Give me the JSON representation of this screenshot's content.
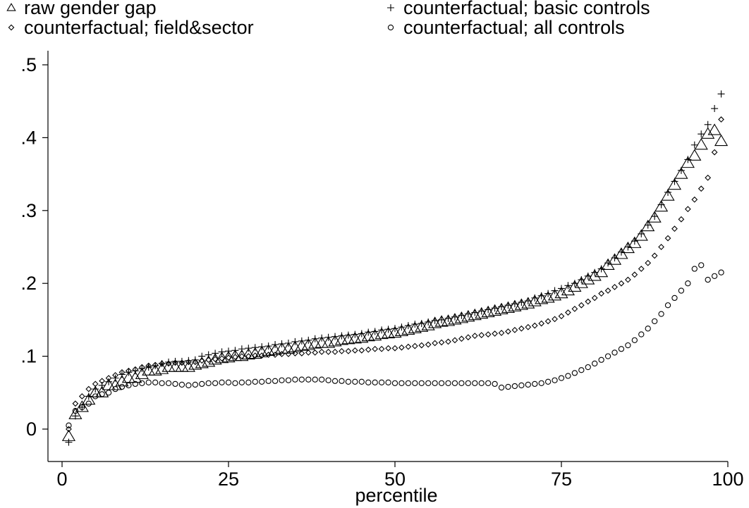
{
  "chart_data": {
    "type": "scatter",
    "xlabel": "percentile",
    "ylabel": "",
    "xlim": [
      0,
      100
    ],
    "ylim": [
      -0.04,
      0.52
    ],
    "xticks": [
      {
        "value": 0,
        "label": "0"
      },
      {
        "value": 25,
        "label": "25"
      },
      {
        "value": 50,
        "label": "50"
      },
      {
        "value": 75,
        "label": "75"
      },
      {
        "value": 100,
        "label": "100"
      }
    ],
    "yticks": [
      {
        "value": 0,
        "label": "0"
      },
      {
        "value": 0.1,
        "label": ".1"
      },
      {
        "value": 0.2,
        "label": ".2"
      },
      {
        "value": 0.3,
        "label": ".3"
      },
      {
        "value": 0.4,
        "label": ".4"
      },
      {
        "value": 0.5,
        "label": ".5"
      }
    ],
    "legend_position": "top",
    "series": [
      {
        "name": "raw gender gap",
        "marker": "triangle",
        "x": [
          1,
          2,
          3,
          4,
          5,
          6,
          7,
          8,
          9,
          10,
          11,
          12,
          13,
          14,
          15,
          16,
          17,
          18,
          19,
          20,
          21,
          22,
          23,
          24,
          25,
          26,
          27,
          28,
          29,
          30,
          31,
          32,
          33,
          34,
          35,
          36,
          37,
          38,
          39,
          40,
          41,
          42,
          43,
          44,
          45,
          46,
          47,
          48,
          49,
          50,
          51,
          52,
          53,
          54,
          55,
          56,
          57,
          58,
          59,
          60,
          61,
          62,
          63,
          64,
          65,
          66,
          67,
          68,
          69,
          70,
          71,
          72,
          73,
          74,
          75,
          76,
          77,
          78,
          79,
          80,
          81,
          82,
          83,
          84,
          85,
          86,
          87,
          88,
          89,
          90,
          91,
          92,
          93,
          94,
          95,
          96,
          97,
          98,
          99
        ],
        "y": [
          -0.01,
          0.02,
          0.03,
          0.04,
          0.05,
          0.05,
          0.06,
          0.06,
          0.065,
          0.07,
          0.07,
          0.075,
          0.08,
          0.08,
          0.082,
          0.085,
          0.085,
          0.085,
          0.085,
          0.088,
          0.09,
          0.092,
          0.095,
          0.097,
          0.098,
          0.1,
          0.1,
          0.102,
          0.103,
          0.105,
          0.107,
          0.108,
          0.11,
          0.11,
          0.112,
          0.114,
          0.115,
          0.117,
          0.118,
          0.118,
          0.12,
          0.122,
          0.123,
          0.124,
          0.125,
          0.127,
          0.128,
          0.13,
          0.131,
          0.132,
          0.134,
          0.136,
          0.138,
          0.14,
          0.142,
          0.145,
          0.147,
          0.148,
          0.15,
          0.152,
          0.154,
          0.156,
          0.158,
          0.16,
          0.162,
          0.164,
          0.166,
          0.168,
          0.17,
          0.172,
          0.175,
          0.178,
          0.18,
          0.183,
          0.186,
          0.19,
          0.195,
          0.2,
          0.205,
          0.21,
          0.215,
          0.225,
          0.232,
          0.24,
          0.248,
          0.255,
          0.265,
          0.278,
          0.29,
          0.305,
          0.32,
          0.335,
          0.35,
          0.365,
          0.375,
          0.39,
          0.405,
          0.41,
          0.395
        ]
      },
      {
        "name": "counterfactual; basic controls",
        "marker": "plus",
        "x": [
          1,
          2,
          3,
          4,
          5,
          6,
          7,
          8,
          9,
          10,
          11,
          12,
          13,
          14,
          15,
          16,
          17,
          18,
          19,
          20,
          21,
          22,
          23,
          24,
          25,
          26,
          27,
          28,
          29,
          30,
          31,
          32,
          33,
          34,
          35,
          36,
          37,
          38,
          39,
          40,
          41,
          42,
          43,
          44,
          45,
          46,
          47,
          48,
          49,
          50,
          51,
          52,
          53,
          54,
          55,
          56,
          57,
          58,
          59,
          60,
          61,
          62,
          63,
          64,
          65,
          66,
          67,
          68,
          69,
          70,
          71,
          72,
          73,
          74,
          75,
          76,
          77,
          78,
          79,
          80,
          81,
          82,
          83,
          84,
          85,
          86,
          87,
          88,
          89,
          90,
          91,
          92,
          93,
          94,
          95,
          96,
          97,
          98,
          99
        ],
        "y": [
          -0.018,
          0.018,
          0.03,
          0.045,
          0.055,
          0.06,
          0.065,
          0.07,
          0.075,
          0.078,
          0.08,
          0.083,
          0.085,
          0.087,
          0.09,
          0.092,
          0.093,
          0.093,
          0.094,
          0.095,
          0.1,
          0.102,
          0.104,
          0.106,
          0.107,
          0.108,
          0.11,
          0.111,
          0.112,
          0.113,
          0.114,
          0.116,
          0.117,
          0.118,
          0.12,
          0.121,
          0.122,
          0.124,
          0.125,
          0.126,
          0.127,
          0.128,
          0.129,
          0.13,
          0.131,
          0.133,
          0.134,
          0.136,
          0.137,
          0.138,
          0.14,
          0.142,
          0.144,
          0.145,
          0.147,
          0.149,
          0.15,
          0.152,
          0.154,
          0.156,
          0.158,
          0.16,
          0.162,
          0.164,
          0.166,
          0.168,
          0.17,
          0.172,
          0.174,
          0.176,
          0.18,
          0.183,
          0.186,
          0.19,
          0.193,
          0.197,
          0.2,
          0.205,
          0.21,
          0.215,
          0.22,
          0.228,
          0.235,
          0.243,
          0.25,
          0.258,
          0.268,
          0.28,
          0.292,
          0.308,
          0.325,
          0.34,
          0.355,
          0.37,
          0.39,
          0.405,
          0.418,
          0.44,
          0.46
        ]
      },
      {
        "name": "counterfactual; field&sector",
        "marker": "diamond",
        "x": [
          1,
          2,
          3,
          4,
          5,
          6,
          7,
          8,
          9,
          10,
          11,
          12,
          13,
          14,
          15,
          16,
          17,
          18,
          19,
          20,
          21,
          22,
          23,
          24,
          25,
          26,
          27,
          28,
          29,
          30,
          31,
          32,
          33,
          34,
          35,
          36,
          37,
          38,
          39,
          40,
          41,
          42,
          43,
          44,
          45,
          46,
          47,
          48,
          49,
          50,
          51,
          52,
          53,
          54,
          55,
          56,
          57,
          58,
          59,
          60,
          61,
          62,
          63,
          64,
          65,
          66,
          67,
          68,
          69,
          70,
          71,
          72,
          73,
          74,
          75,
          76,
          77,
          78,
          79,
          80,
          81,
          82,
          83,
          84,
          85,
          86,
          87,
          88,
          89,
          90,
          91,
          92,
          93,
          94,
          95,
          96,
          97,
          98,
          99
        ],
        "y": [
          0,
          0.035,
          0.045,
          0.055,
          0.062,
          0.066,
          0.07,
          0.074,
          0.078,
          0.08,
          0.082,
          0.085,
          0.087,
          0.088,
          0.09,
          0.09,
          0.091,
          0.091,
          0.092,
          0.092,
          0.094,
          0.095,
          0.096,
          0.097,
          0.098,
          0.099,
          0.1,
          0.1,
          0.101,
          0.101,
          0.102,
          0.102,
          0.103,
          0.103,
          0.104,
          0.104,
          0.105,
          0.105,
          0.106,
          0.106,
          0.106,
          0.107,
          0.107,
          0.108,
          0.108,
          0.109,
          0.11,
          0.11,
          0.111,
          0.111,
          0.112,
          0.113,
          0.114,
          0.115,
          0.116,
          0.118,
          0.119,
          0.12,
          0.122,
          0.124,
          0.126,
          0.128,
          0.129,
          0.13,
          0.131,
          0.132,
          0.134,
          0.136,
          0.138,
          0.14,
          0.142,
          0.145,
          0.148,
          0.151,
          0.155,
          0.16,
          0.165,
          0.17,
          0.175,
          0.18,
          0.186,
          0.19,
          0.195,
          0.2,
          0.205,
          0.212,
          0.22,
          0.228,
          0.238,
          0.25,
          0.262,
          0.275,
          0.288,
          0.302,
          0.315,
          0.33,
          0.345,
          0.38,
          0.425
        ]
      },
      {
        "name": "counterfactual; all controls",
        "marker": "circle",
        "x": [
          1,
          2,
          3,
          4,
          5,
          6,
          7,
          8,
          9,
          10,
          11,
          12,
          13,
          14,
          15,
          16,
          17,
          18,
          19,
          20,
          21,
          22,
          23,
          24,
          25,
          26,
          27,
          28,
          29,
          30,
          31,
          32,
          33,
          34,
          35,
          36,
          37,
          38,
          39,
          40,
          41,
          42,
          43,
          44,
          45,
          46,
          47,
          48,
          49,
          50,
          51,
          52,
          53,
          54,
          55,
          56,
          57,
          58,
          59,
          60,
          61,
          62,
          63,
          64,
          65,
          66,
          67,
          68,
          69,
          70,
          71,
          72,
          73,
          74,
          75,
          76,
          77,
          78,
          79,
          80,
          81,
          82,
          83,
          84,
          85,
          86,
          87,
          88,
          89,
          90,
          91,
          92,
          93,
          94,
          95,
          96,
          97,
          98,
          99
        ],
        "y": [
          0.005,
          0.025,
          0.03,
          0.035,
          0.045,
          0.048,
          0.05,
          0.055,
          0.058,
          0.06,
          0.062,
          0.063,
          0.064,
          0.064,
          0.063,
          0.063,
          0.062,
          0.061,
          0.06,
          0.061,
          0.062,
          0.063,
          0.063,
          0.064,
          0.064,
          0.063,
          0.064,
          0.064,
          0.065,
          0.065,
          0.066,
          0.066,
          0.067,
          0.067,
          0.068,
          0.068,
          0.068,
          0.068,
          0.068,
          0.067,
          0.066,
          0.066,
          0.065,
          0.065,
          0.065,
          0.064,
          0.064,
          0.064,
          0.064,
          0.063,
          0.063,
          0.063,
          0.063,
          0.063,
          0.063,
          0.063,
          0.063,
          0.063,
          0.063,
          0.063,
          0.063,
          0.063,
          0.063,
          0.063,
          0.062,
          0.057,
          0.058,
          0.059,
          0.06,
          0.061,
          0.062,
          0.063,
          0.065,
          0.067,
          0.07,
          0.073,
          0.077,
          0.081,
          0.085,
          0.09,
          0.095,
          0.1,
          0.105,
          0.11,
          0.115,
          0.122,
          0.13,
          0.138,
          0.148,
          0.158,
          0.17,
          0.18,
          0.19,
          0.2,
          0.22,
          0.225,
          0.205,
          0.21,
          0.215
        ]
      }
    ]
  }
}
